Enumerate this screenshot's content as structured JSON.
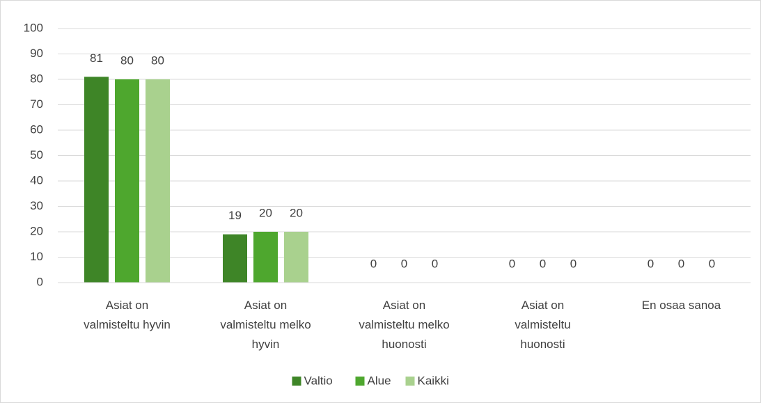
{
  "chart_data": {
    "type": "bar",
    "categories": [
      "Asiat on valmisteltu hyvin",
      "Asiat on valmisteltu melko hyvin",
      "Asiat on valmisteltu melko huonosti",
      "Asiat on valmisteltu huonosti",
      "En osaa sanoa"
    ],
    "series": [
      {
        "name": "Valtio",
        "color": "#3e8527",
        "values": [
          81,
          19,
          0,
          0,
          0
        ]
      },
      {
        "name": "Alue",
        "color": "#4ea72e",
        "values": [
          80,
          20,
          0,
          0,
          0
        ]
      },
      {
        "name": "Kaikki",
        "color": "#a9d18e",
        "values": [
          80,
          20,
          0,
          0,
          0
        ]
      }
    ],
    "ylim": [
      0,
      100
    ],
    "yticks": [
      0,
      10,
      20,
      30,
      40,
      50,
      60,
      70,
      80,
      90,
      100
    ],
    "grid": true,
    "legend": "bottom"
  }
}
